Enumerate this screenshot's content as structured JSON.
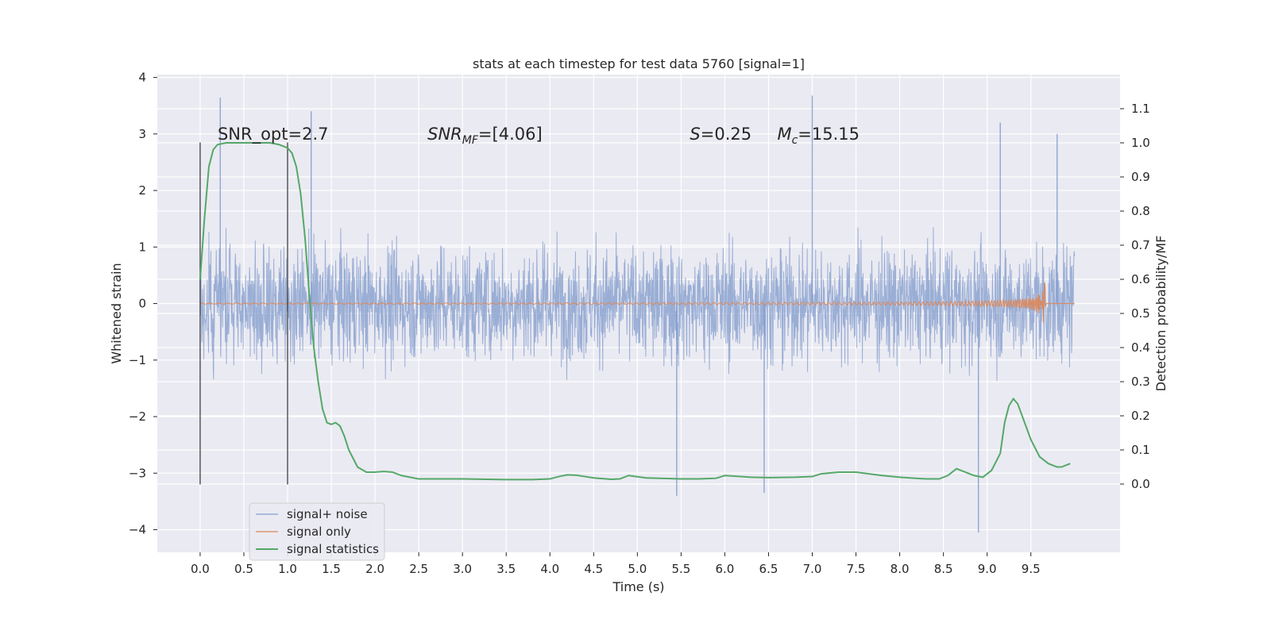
{
  "chart_data": {
    "type": "line",
    "title": "stats at each timestep for test data 5760 [signal=1]",
    "xlabel": "Time (s)",
    "ylabel_left": "Whitened strain",
    "ylabel_right": "Detection probability/MF",
    "xlim": [
      -0.49,
      10.52
    ],
    "ylim_left": [
      -4.4,
      4.05
    ],
    "ylim_right": [
      -0.2,
      1.2
    ],
    "x_ticks": [
      "0.0",
      "0.5",
      "1.0",
      "1.5",
      "2.0",
      "2.5",
      "3.0",
      "3.5",
      "4.0",
      "4.5",
      "5.0",
      "5.5",
      "6.0",
      "6.5",
      "7.0",
      "7.5",
      "8.0",
      "8.5",
      "9.0",
      "9.5"
    ],
    "y_ticks_left": [
      "4",
      "3",
      "2",
      "1",
      "0",
      "−1",
      "−2",
      "−3",
      "−4"
    ],
    "y_ticks_right": [
      "1.1",
      "1.0",
      "0.9",
      "0.8",
      "0.7",
      "0.6",
      "0.5",
      "0.4",
      "0.3",
      "0.2",
      "0.1",
      "0.0"
    ],
    "grid": true,
    "legend_position": "lower-left",
    "colors": {
      "background": "#eaeaf2",
      "grid": "#ffffff",
      "noise": "#7f9acb",
      "signal_only": "#dd8452",
      "statistics": "#55a868",
      "window_lines": "#3a3a3a"
    },
    "series": [
      {
        "name": "signal+ noise",
        "axis": "left",
        "description_values": {
          "x_range": [
            0.0,
            10.0
          ],
          "typical_envelope": [
            -1.5,
            1.6
          ],
          "max_peak": 3.68,
          "min_peak": -4.05
        }
      },
      {
        "name": "signal only",
        "axis": "left",
        "description_values": {
          "x_range": [
            0.0,
            10.0
          ],
          "chirp_peak_time": 9.67,
          "chirp_peak_amplitude": 0.4
        }
      },
      {
        "name": "signal statistics",
        "axis": "right",
        "x": [
          0.0,
          0.05,
          0.1,
          0.15,
          0.2,
          0.3,
          0.5,
          0.7,
          0.8,
          0.9,
          1.0,
          1.05,
          1.1,
          1.15,
          1.2,
          1.25,
          1.3,
          1.35,
          1.4,
          1.45,
          1.5,
          1.55,
          1.6,
          1.65,
          1.7,
          1.8,
          1.9,
          2.0,
          2.1,
          2.2,
          2.3,
          2.5,
          3.0,
          3.5,
          3.8,
          4.0,
          4.1,
          4.2,
          4.3,
          4.5,
          4.7,
          4.8,
          4.9,
          5.1,
          5.5,
          5.7,
          5.9,
          6.0,
          6.3,
          6.5,
          6.8,
          7.0,
          7.1,
          7.3,
          7.5,
          7.8,
          8.0,
          8.3,
          8.45,
          8.55,
          8.65,
          8.75,
          8.85,
          8.95,
          9.05,
          9.15,
          9.2,
          9.25,
          9.3,
          9.35,
          9.4,
          9.5,
          9.6,
          9.7,
          9.8,
          9.85,
          9.95
        ],
        "values": [
          0.6,
          0.78,
          0.93,
          0.98,
          0.995,
          1.0,
          1.0,
          1.0,
          1.0,
          0.995,
          0.985,
          0.97,
          0.93,
          0.85,
          0.72,
          0.55,
          0.4,
          0.3,
          0.22,
          0.18,
          0.175,
          0.18,
          0.17,
          0.14,
          0.1,
          0.05,
          0.035,
          0.035,
          0.037,
          0.035,
          0.025,
          0.015,
          0.015,
          0.013,
          0.013,
          0.015,
          0.022,
          0.027,
          0.026,
          0.018,
          0.014,
          0.015,
          0.025,
          0.018,
          0.015,
          0.015,
          0.017,
          0.025,
          0.02,
          0.019,
          0.02,
          0.022,
          0.03,
          0.035,
          0.035,
          0.025,
          0.02,
          0.015,
          0.015,
          0.025,
          0.045,
          0.035,
          0.025,
          0.02,
          0.04,
          0.09,
          0.18,
          0.23,
          0.25,
          0.235,
          0.2,
          0.13,
          0.08,
          0.06,
          0.05,
          0.05,
          0.06
        ]
      }
    ],
    "vertical_lines": [
      {
        "x": 0.0,
        "ymin": -3.2,
        "ymax": 2.85
      },
      {
        "x": 1.0,
        "ymin": -3.2,
        "ymax": 2.85
      }
    ],
    "annotations": [
      {
        "x": 0.2,
        "y": 2.9,
        "text": "SNR_opt=2.7",
        "italic": false
      },
      {
        "x": 2.6,
        "y": 2.9,
        "text_main": "SNR",
        "text_sub": "MF",
        "text_rest": "=[4.06]",
        "italic": true
      },
      {
        "x": 5.6,
        "y": 2.9,
        "text_main": "S",
        "text_sub": "",
        "text_rest": "=0.25",
        "italic": true
      },
      {
        "x": 6.6,
        "y": 2.9,
        "text_main": "M",
        "text_sub": "c",
        "text_rest": "=15.15",
        "italic": true
      }
    ]
  }
}
